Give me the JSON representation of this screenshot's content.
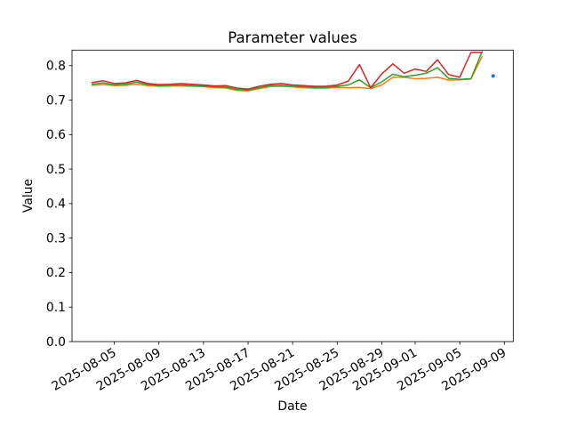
{
  "figure": {
    "title": "Parameter values",
    "xlabel": "Date",
    "ylabel": "Value"
  },
  "chart_data": {
    "type": "line",
    "title": "Parameter values",
    "xlabel": "Date",
    "ylabel": "Value",
    "grid": false,
    "legend": "none",
    "background": "#ffffff",
    "axis_color": "#000000",
    "ylim": [
      0.0,
      0.845
    ],
    "yticks": [
      0.0,
      0.1,
      0.2,
      0.3,
      0.4,
      0.5,
      0.6,
      0.7,
      0.8
    ],
    "xtick_labels": [
      "2025-08-05",
      "2025-08-09",
      "2025-08-13",
      "2025-08-17",
      "2025-08-21",
      "2025-08-25",
      "2025-08-29",
      "2025-09-01",
      "2025-09-05",
      "2025-09-09"
    ],
    "xtick_rotation_deg": 30,
    "x": [
      "2025-08-03",
      "2025-08-04",
      "2025-08-05",
      "2025-08-06",
      "2025-08-07",
      "2025-08-08",
      "2025-08-09",
      "2025-08-10",
      "2025-08-11",
      "2025-08-12",
      "2025-08-13",
      "2025-08-14",
      "2025-08-15",
      "2025-08-16",
      "2025-08-17",
      "2025-08-18",
      "2025-08-19",
      "2025-08-20",
      "2025-08-21",
      "2025-08-22",
      "2025-08-23",
      "2025-08-24",
      "2025-08-25",
      "2025-08-26",
      "2025-08-27",
      "2025-08-28",
      "2025-08-29",
      "2025-08-30",
      "2025-08-31",
      "2025-09-01",
      "2025-09-02",
      "2025-09-03",
      "2025-09-04",
      "2025-09-05",
      "2025-09-06",
      "2025-09-07"
    ],
    "series": [
      {
        "name": "orange-line",
        "color": "#ff7f0e",
        "values": [
          0.743,
          0.745,
          0.742,
          0.743,
          0.746,
          0.742,
          0.74,
          0.741,
          0.741,
          0.74,
          0.739,
          0.736,
          0.735,
          0.728,
          0.727,
          0.733,
          0.739,
          0.74,
          0.738,
          0.736,
          0.734,
          0.735,
          0.737,
          0.736,
          0.737,
          0.733,
          0.744,
          0.766,
          0.766,
          0.762,
          0.763,
          0.766,
          0.758,
          0.759,
          0.761,
          0.826
        ]
      },
      {
        "name": "green-line",
        "color": "#2ca02c",
        "values": [
          0.746,
          0.75,
          0.744,
          0.746,
          0.752,
          0.745,
          0.742,
          0.743,
          0.744,
          0.742,
          0.741,
          0.738,
          0.738,
          0.731,
          0.729,
          0.736,
          0.742,
          0.743,
          0.74,
          0.739,
          0.737,
          0.737,
          0.74,
          0.744,
          0.759,
          0.736,
          0.753,
          0.775,
          0.768,
          0.772,
          0.778,
          0.794,
          0.763,
          0.76,
          0.762,
          0.84
        ]
      },
      {
        "name": "red-line",
        "color": "#d62728",
        "values": [
          0.751,
          0.756,
          0.748,
          0.75,
          0.757,
          0.748,
          0.745,
          0.746,
          0.748,
          0.746,
          0.744,
          0.741,
          0.742,
          0.735,
          0.732,
          0.74,
          0.746,
          0.748,
          0.744,
          0.742,
          0.74,
          0.74,
          0.744,
          0.755,
          0.803,
          0.736,
          0.776,
          0.805,
          0.778,
          0.79,
          0.783,
          0.817,
          0.774,
          0.766,
          0.838,
          0.838
        ]
      }
    ],
    "point_series": {
      "name": "blue-point",
      "color": "#1f77b4",
      "marker": "dot",
      "x_date": "2025-09-08",
      "value": 0.77
    }
  }
}
